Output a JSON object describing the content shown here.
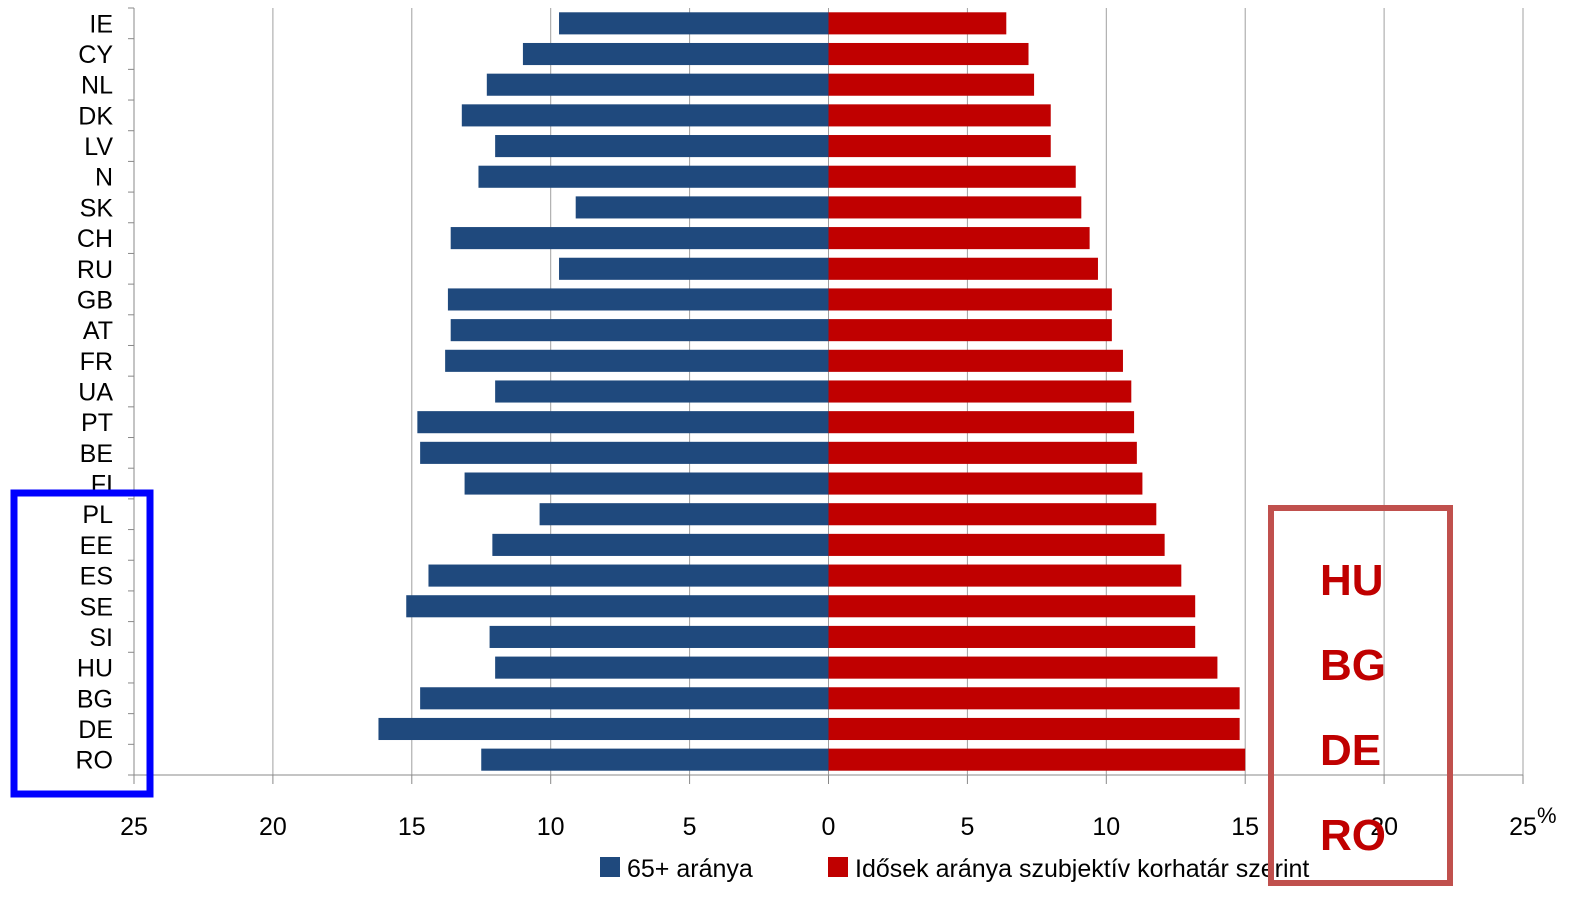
{
  "chart_data": {
    "type": "bar",
    "orientation": "horizontal-diverging",
    "categories": [
      "IE",
      "CY",
      "NL",
      "DK",
      "LV",
      "N",
      "SK",
      "CH",
      "RU",
      "GB",
      "AT",
      "FR",
      "UA",
      "PT",
      "BE",
      "FI",
      "PL",
      "EE",
      "ES",
      "SE",
      "SI",
      "HU",
      "BG",
      "DE",
      "RO"
    ],
    "series": [
      {
        "name": "65+ aránya",
        "color": "#1f497d",
        "values": [
          9.7,
          11.0,
          12.3,
          13.2,
          12.0,
          12.6,
          9.1,
          13.6,
          9.7,
          13.7,
          13.6,
          13.8,
          12.0,
          14.8,
          14.7,
          13.1,
          10.4,
          12.1,
          14.4,
          15.2,
          12.2,
          12.0,
          14.7,
          16.2,
          12.5
        ]
      },
      {
        "name": "Idősek aránya  szubjektív korhatár szerint",
        "color": "#c00000",
        "values": [
          6.4,
          7.2,
          7.4,
          8.0,
          8.0,
          8.9,
          9.1,
          9.4,
          9.7,
          10.2,
          10.2,
          10.6,
          10.9,
          11.0,
          11.1,
          11.3,
          11.8,
          12.1,
          12.7,
          13.2,
          13.2,
          14.0,
          14.8,
          14.8,
          15.0
        ]
      }
    ],
    "xlim": [
      -25,
      25
    ],
    "xticks": [
      -25,
      -20,
      -15,
      -10,
      -5,
      0,
      5,
      10,
      15,
      20,
      25
    ],
    "xtick_labels": [
      "25",
      "20",
      "15",
      "10",
      "5",
      "0",
      "5",
      "10",
      "15",
      "20",
      "25"
    ],
    "x_unit": "%",
    "grid": "vertical",
    "legend_position": "bottom"
  },
  "annotations": {
    "left_box": {
      "color": "#0000ff",
      "items": [
        "PL",
        "EE",
        "ES",
        "SE",
        "SI",
        "HU",
        "BG",
        "DE",
        "RO"
      ]
    },
    "right_box": {
      "color": "#c0504d",
      "text_color": "#c00000",
      "items": [
        "HU",
        "BG",
        "DE",
        "RO"
      ]
    }
  }
}
